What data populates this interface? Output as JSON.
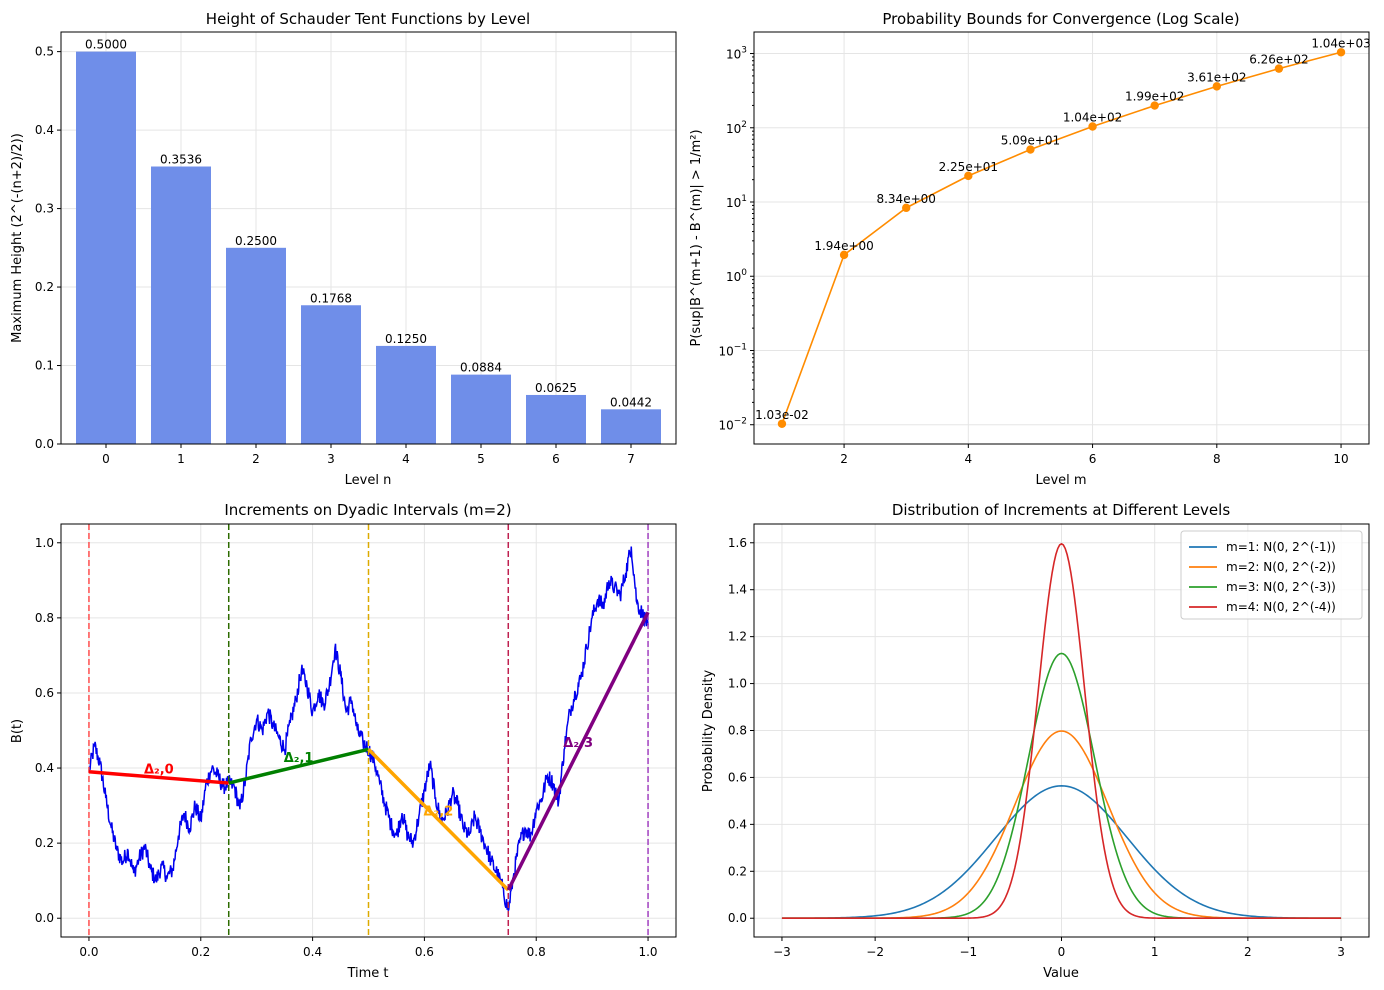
{
  "chart_data": [
    {
      "type": "bar",
      "title": "Height of Schauder Tent Functions by Level",
      "xlabel": "Level n",
      "ylabel": "Maximum Height (2^(-(n+2)/2))",
      "categories": [
        "0",
        "1",
        "2",
        "3",
        "4",
        "5",
        "6",
        "7"
      ],
      "values": [
        0.5,
        0.3536,
        0.25,
        0.1768,
        0.125,
        0.0884,
        0.0625,
        0.0442
      ],
      "data_labels": [
        "0.5000",
        "0.3536",
        "0.2500",
        "0.1768",
        "0.1250",
        "0.0884",
        "0.0625",
        "0.0442"
      ],
      "ylim": [
        0,
        0.525
      ],
      "yticks": [
        0.0,
        0.1,
        0.2,
        0.3,
        0.4,
        0.5
      ],
      "ytick_labels": [
        "0.0",
        "0.1",
        "0.2",
        "0.3",
        "0.4",
        "0.5"
      ],
      "color": "#6f8ee9",
      "grid": true
    },
    {
      "type": "line",
      "title": "Probability Bounds for Convergence (Log Scale)",
      "xlabel": "Level m",
      "ylabel": "P(sup|B^(m+1) - B^(m)| > 1/m²)",
      "yscale": "log",
      "x": [
        1,
        2,
        3,
        4,
        5,
        6,
        7,
        8,
        9,
        10
      ],
      "y": [
        0.0103,
        1.94,
        8.34,
        22.5,
        50.9,
        104,
        199,
        361,
        626,
        1040
      ],
      "data_labels": [
        "1.03e-02",
        "1.94e+00",
        "8.34e+00",
        "2.25e+01",
        "5.09e+01",
        "1.04e+02",
        "1.99e+02",
        "3.61e+02",
        "6.26e+02",
        "1.04e+03"
      ],
      "xlim": [
        0.55,
        10.45
      ],
      "xticks": [
        2,
        4,
        6,
        8,
        10
      ],
      "ylim": [
        0.0055,
        1950
      ],
      "ytick_exponents": [
        "-2",
        "-1",
        "0",
        "1",
        "2",
        "3"
      ],
      "color": "#ff8c00",
      "grid": true
    },
    {
      "type": "line",
      "title": "Increments on Dyadic Intervals (m=2)",
      "xlabel": "Time t",
      "ylabel": "B(t)",
      "xlim": [
        -0.05,
        1.05
      ],
      "ylim": [
        -0.05,
        1.05
      ],
      "xticks": [
        0.0,
        0.2,
        0.4,
        0.6,
        0.8,
        1.0
      ],
      "xtick_labels": [
        "0.0",
        "0.2",
        "0.4",
        "0.6",
        "0.8",
        "1.0"
      ],
      "yticks": [
        0.0,
        0.2,
        0.4,
        0.6,
        0.8,
        1.0
      ],
      "ytick_labels": [
        "0.0",
        "0.2",
        "0.4",
        "0.6",
        "0.8",
        "1.0"
      ],
      "path_color": "#0000ee",
      "path_anchors": [
        [
          0.0,
          0.39
        ],
        [
          0.01,
          0.46
        ],
        [
          0.02,
          0.41
        ],
        [
          0.03,
          0.32
        ],
        [
          0.04,
          0.24
        ],
        [
          0.05,
          0.18
        ],
        [
          0.06,
          0.15
        ],
        [
          0.07,
          0.18
        ],
        [
          0.08,
          0.12
        ],
        [
          0.09,
          0.16
        ],
        [
          0.1,
          0.19
        ],
        [
          0.11,
          0.13
        ],
        [
          0.12,
          0.1
        ],
        [
          0.13,
          0.14
        ],
        [
          0.14,
          0.11
        ],
        [
          0.15,
          0.13
        ],
        [
          0.16,
          0.22
        ],
        [
          0.17,
          0.28
        ],
        [
          0.18,
          0.24
        ],
        [
          0.19,
          0.3
        ],
        [
          0.2,
          0.26
        ],
        [
          0.21,
          0.36
        ],
        [
          0.22,
          0.4
        ],
        [
          0.23,
          0.38
        ],
        [
          0.24,
          0.35
        ],
        [
          0.25,
          0.36
        ],
        [
          0.26,
          0.35
        ],
        [
          0.27,
          0.29
        ],
        [
          0.28,
          0.37
        ],
        [
          0.29,
          0.48
        ],
        [
          0.3,
          0.53
        ],
        [
          0.31,
          0.5
        ],
        [
          0.32,
          0.55
        ],
        [
          0.33,
          0.51
        ],
        [
          0.34,
          0.48
        ],
        [
          0.35,
          0.45
        ],
        [
          0.36,
          0.52
        ],
        [
          0.37,
          0.58
        ],
        [
          0.38,
          0.66
        ],
        [
          0.39,
          0.62
        ],
        [
          0.4,
          0.55
        ],
        [
          0.41,
          0.6
        ],
        [
          0.42,
          0.57
        ],
        [
          0.43,
          0.62
        ],
        [
          0.44,
          0.72
        ],
        [
          0.45,
          0.65
        ],
        [
          0.46,
          0.55
        ],
        [
          0.47,
          0.58
        ],
        [
          0.48,
          0.5
        ],
        [
          0.49,
          0.47
        ],
        [
          0.5,
          0.45
        ],
        [
          0.51,
          0.42
        ],
        [
          0.52,
          0.36
        ],
        [
          0.53,
          0.3
        ],
        [
          0.54,
          0.25
        ],
        [
          0.55,
          0.22
        ],
        [
          0.56,
          0.28
        ],
        [
          0.57,
          0.22
        ],
        [
          0.58,
          0.2
        ],
        [
          0.59,
          0.27
        ],
        [
          0.6,
          0.34
        ],
        [
          0.61,
          0.41
        ],
        [
          0.62,
          0.32
        ],
        [
          0.63,
          0.26
        ],
        [
          0.64,
          0.28
        ],
        [
          0.65,
          0.33
        ],
        [
          0.66,
          0.3
        ],
        [
          0.67,
          0.24
        ],
        [
          0.68,
          0.22
        ],
        [
          0.69,
          0.27
        ],
        [
          0.7,
          0.23
        ],
        [
          0.71,
          0.19
        ],
        [
          0.72,
          0.15
        ],
        [
          0.73,
          0.12
        ],
        [
          0.74,
          0.08
        ],
        [
          0.75,
          0.02
        ],
        [
          0.76,
          0.12
        ],
        [
          0.77,
          0.2
        ],
        [
          0.78,
          0.24
        ],
        [
          0.79,
          0.22
        ],
        [
          0.8,
          0.29
        ],
        [
          0.81,
          0.32
        ],
        [
          0.82,
          0.38
        ],
        [
          0.83,
          0.36
        ],
        [
          0.84,
          0.31
        ],
        [
          0.85,
          0.45
        ],
        [
          0.86,
          0.55
        ],
        [
          0.87,
          0.6
        ],
        [
          0.88,
          0.64
        ],
        [
          0.89,
          0.72
        ],
        [
          0.9,
          0.8
        ],
        [
          0.91,
          0.85
        ],
        [
          0.92,
          0.83
        ],
        [
          0.93,
          0.9
        ],
        [
          0.94,
          0.88
        ],
        [
          0.95,
          0.86
        ],
        [
          0.96,
          0.92
        ],
        [
          0.97,
          0.99
        ],
        [
          0.98,
          0.84
        ],
        [
          0.99,
          0.81
        ],
        [
          1.0,
          0.78
        ]
      ],
      "segments": [
        {
          "label": "Δ₂,0",
          "t0": 0.0,
          "t1": 0.25,
          "y0": 0.39,
          "y1": 0.36,
          "color": "#ff0000"
        },
        {
          "label": "Δ₂,1",
          "t0": 0.25,
          "t1": 0.5,
          "y0": 0.36,
          "y1": 0.45,
          "color": "#008000"
        },
        {
          "label": "Δ₂,2",
          "t0": 0.5,
          "t1": 0.75,
          "y0": 0.45,
          "y1": 0.075,
          "color": "#ffa500"
        },
        {
          "label": "Δ₂,3",
          "t0": 0.75,
          "t1": 1.0,
          "y0": 0.075,
          "y1": 0.815,
          "color": "#800080"
        }
      ],
      "vlines": [
        {
          "t": 0.0,
          "color": "#ff4d4d"
        },
        {
          "t": 0.25,
          "color": "#2d6b00"
        },
        {
          "t": 0.5,
          "color": "#ddaa00"
        },
        {
          "t": 0.75,
          "color": "#bf2050"
        },
        {
          "t": 1.0,
          "color": "#a040c0"
        }
      ]
    },
    {
      "type": "line",
      "title": "Distribution of Increments at Different Levels",
      "xlabel": "Value",
      "ylabel": "Probability Density",
      "xlim": [
        -3.3,
        3.3
      ],
      "ylim": [
        -0.08,
        1.68
      ],
      "xticks": [
        -3,
        -2,
        -1,
        0,
        1,
        2,
        3
      ],
      "xtick_labels": [
        "−3",
        "−2",
        "−1",
        "0",
        "1",
        "2",
        "3"
      ],
      "yticks": [
        0.0,
        0.2,
        0.4,
        0.6,
        0.8,
        1.0,
        1.2,
        1.4,
        1.6
      ],
      "ytick_labels": [
        "0.0",
        "0.2",
        "0.4",
        "0.6",
        "0.8",
        "1.0",
        "1.2",
        "1.4",
        "1.6"
      ],
      "legend_position": "top-right",
      "series": [
        {
          "name": "m=1: N(0, 2^(-1))",
          "variance": 0.5,
          "color": "#1f77b4"
        },
        {
          "name": "m=2: N(0, 2^(-2))",
          "variance": 0.25,
          "color": "#ff7f0e"
        },
        {
          "name": "m=3: N(0, 2^(-3))",
          "variance": 0.125,
          "color": "#2ca02c"
        },
        {
          "name": "m=4: N(0, 2^(-4))",
          "variance": 0.0625,
          "color": "#d62728"
        }
      ],
      "x_range": [
        -3,
        3
      ]
    }
  ]
}
